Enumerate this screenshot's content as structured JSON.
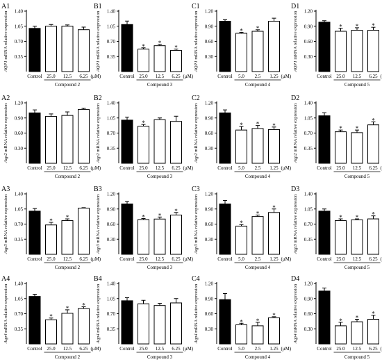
{
  "chart_data": [
    {
      "id": "A1",
      "type": "bar",
      "ylabel_name": "AQP1",
      "ylabel_suffix": " mRNA relative expression",
      "yticks": [
        0.35,
        0.7,
        1.05,
        1.4
      ],
      "ylim": [
        0,
        1.4
      ],
      "categories": [
        "Control",
        "25.0",
        "12.5",
        "6.25"
      ],
      "values": [
        1.0,
        1.05,
        1.05,
        0.97
      ],
      "errors": [
        0.05,
        0.04,
        0.03,
        0.06
      ],
      "significant": [
        false,
        false,
        false,
        false
      ],
      "unit": "(μM)",
      "compound": "Compound 2"
    },
    {
      "id": "B1",
      "type": "bar",
      "ylabel_name": "AQP1",
      "ylabel_suffix": " mRNA relative expression",
      "yticks": [
        0.35,
        0.7,
        1.05,
        1.4
      ],
      "ylim": [
        0,
        1.4
      ],
      "categories": [
        "Control",
        "25.0",
        "12.5",
        "6.25"
      ],
      "values": [
        1.09,
        0.52,
        0.6,
        0.49
      ],
      "errors": [
        0.08,
        0.03,
        0.03,
        0.03
      ],
      "significant": [
        false,
        true,
        true,
        true
      ],
      "unit": "(μM)",
      "compound": "Compound 3"
    },
    {
      "id": "C1",
      "type": "bar",
      "ylabel_name": "AQP1",
      "ylabel_suffix": " mRNA relative expression",
      "yticks": [
        0.3,
        0.6,
        0.9,
        1.2
      ],
      "ylim": [
        0,
        1.2
      ],
      "categories": [
        "Control",
        "5.0",
        "2.5",
        "1.25"
      ],
      "values": [
        1.0,
        0.76,
        0.8,
        1.0
      ],
      "errors": [
        0.03,
        0.02,
        0.03,
        0.06
      ],
      "significant": [
        false,
        true,
        true,
        false
      ],
      "unit": "(μM)",
      "compound": "Compound 4"
    },
    {
      "id": "D1",
      "type": "bar",
      "ylabel_name": "AQP1",
      "ylabel_suffix": " mRNA relative expression",
      "yticks": [
        0.3,
        0.6,
        0.9,
        1.2
      ],
      "ylim": [
        0,
        1.2
      ],
      "categories": [
        "Control",
        "25.0",
        "12.5",
        "6.25"
      ],
      "values": [
        0.98,
        0.8,
        0.82,
        0.82
      ],
      "errors": [
        0.03,
        0.06,
        0.05,
        0.06
      ],
      "significant": [
        false,
        true,
        true,
        true
      ],
      "unit": "(μM)",
      "compound": "Compound 5"
    },
    {
      "id": "A2",
      "type": "bar",
      "ylabel_name": "Aqp2",
      "ylabel_suffix": " mRNA relative expression",
      "yticks": [
        0.3,
        0.6,
        0.9,
        1.2
      ],
      "ylim": [
        0,
        1.2
      ],
      "categories": [
        "Control",
        "25.0",
        "12.5",
        "6.25"
      ],
      "values": [
        1.0,
        0.93,
        0.95,
        1.07
      ],
      "errors": [
        0.06,
        0.05,
        0.07,
        0.02
      ],
      "significant": [
        false,
        false,
        false,
        false
      ],
      "unit": "(μM)",
      "compound": "Compound 2"
    },
    {
      "id": "B2",
      "type": "bar",
      "ylabel_name": "Aqp2",
      "ylabel_suffix": " mRNA relative expression",
      "yticks": [
        0.35,
        0.7,
        1.05,
        1.4
      ],
      "ylim": [
        0,
        1.4
      ],
      "categories": [
        "Control",
        "25.0",
        "12.5",
        "6.25"
      ],
      "values": [
        1.0,
        0.86,
        1.01,
        0.97
      ],
      "errors": [
        0.07,
        0.04,
        0.04,
        0.12
      ],
      "significant": [
        false,
        true,
        false,
        false
      ],
      "unit": "(μM)",
      "compound": "Compound 3"
    },
    {
      "id": "C2",
      "type": "bar",
      "ylabel_name": "Aqp2",
      "ylabel_suffix": " mRNA relative expression",
      "yticks": [
        0.3,
        0.6,
        0.9,
        1.2
      ],
      "ylim": [
        0,
        1.2
      ],
      "categories": [
        "Control",
        "5.0",
        "2.5",
        "1.25"
      ],
      "values": [
        1.0,
        0.66,
        0.69,
        0.67
      ],
      "errors": [
        0.06,
        0.07,
        0.06,
        0.05
      ],
      "significant": [
        false,
        true,
        true,
        true
      ],
      "unit": "(μM)",
      "compound": "Compound 4"
    },
    {
      "id": "D2",
      "type": "bar",
      "ylabel_name": "Aqp2",
      "ylabel_suffix": " mRNA relative expression",
      "yticks": [
        0.35,
        0.7,
        1.05,
        1.4
      ],
      "ylim": [
        0,
        1.4
      ],
      "categories": [
        "Control",
        "25.0",
        "12.5",
        "6.25"
      ],
      "values": [
        1.1,
        0.73,
        0.71,
        0.89
      ],
      "errors": [
        0.07,
        0.04,
        0.06,
        0.07
      ],
      "significant": [
        false,
        true,
        true,
        true
      ],
      "unit": "(μM)",
      "compound": "Compound 5"
    },
    {
      "id": "A3",
      "type": "bar",
      "ylabel_name": "Aqp3",
      "ylabel_suffix": " mRNA relative expression",
      "yticks": [
        0.35,
        0.7,
        1.05,
        1.4
      ],
      "ylim": [
        0,
        1.4
      ],
      "categories": [
        "Control",
        "25.0",
        "12.5",
        "6.25"
      ],
      "values": [
        1.0,
        0.68,
        0.78,
        1.07
      ],
      "errors": [
        0.06,
        0.06,
        0.04,
        0.01
      ],
      "significant": [
        false,
        true,
        true,
        false
      ],
      "unit": "(μM)",
      "compound": "Compound 2"
    },
    {
      "id": "B3",
      "type": "bar",
      "ylabel_name": "Aqp3",
      "ylabel_suffix": " mRNA relative expression",
      "yticks": [
        0.3,
        0.6,
        0.9,
        1.2
      ],
      "ylim": [
        0,
        1.2
      ],
      "categories": [
        "Control",
        "25.0",
        "12.5",
        "6.25"
      ],
      "values": [
        1.0,
        0.69,
        0.7,
        0.78
      ],
      "errors": [
        0.05,
        0.02,
        0.04,
        0.05
      ],
      "significant": [
        false,
        true,
        true,
        true
      ],
      "unit": "(μM)",
      "compound": "Compound 3"
    },
    {
      "id": "C3",
      "type": "bar",
      "ylabel_name": "Aqp3",
      "ylabel_suffix": " mRNA relative expression",
      "yticks": [
        0.3,
        0.6,
        0.9,
        1.2
      ],
      "ylim": [
        0,
        1.2
      ],
      "categories": [
        "Control",
        "5.0",
        "2.5",
        "1.25"
      ],
      "values": [
        1.0,
        0.56,
        0.75,
        0.83
      ],
      "errors": [
        0.07,
        0.03,
        0.03,
        0.07
      ],
      "significant": [
        false,
        true,
        true,
        true
      ],
      "unit": "(μM)",
      "compound": "Compound 4"
    },
    {
      "id": "D3",
      "type": "bar",
      "ylabel_name": "Aqp3",
      "ylabel_suffix": " mRNA relative expression",
      "yticks": [
        0.35,
        0.7,
        1.05,
        1.4
      ],
      "ylim": [
        0,
        1.4
      ],
      "categories": [
        "Control",
        "25.0",
        "12.5",
        "6.25"
      ],
      "values": [
        1.0,
        0.78,
        0.8,
        0.82
      ],
      "errors": [
        0.05,
        0.04,
        0.02,
        0.07
      ],
      "significant": [
        false,
        true,
        true,
        true
      ],
      "unit": "(μM)",
      "compound": "Compound 5"
    },
    {
      "id": "A4",
      "type": "bar",
      "ylabel_name": "Aqp4",
      "ylabel_suffix": " mRNA relative expression",
      "yticks": [
        0.35,
        0.7,
        1.05,
        1.4
      ],
      "ylim": [
        0,
        1.4
      ],
      "categories": [
        "Control",
        "25.0",
        "12.5",
        "6.25"
      ],
      "values": [
        1.1,
        0.56,
        0.71,
        0.82
      ],
      "errors": [
        0.05,
        0.04,
        0.08,
        0.04
      ],
      "significant": [
        false,
        true,
        true,
        true
      ],
      "unit": "(μM)",
      "compound": "Compound 2"
    },
    {
      "id": "B4",
      "type": "bar",
      "ylabel_name": "Aqp4",
      "ylabel_suffix": " mRNA relative expression",
      "yticks": [
        0.35,
        0.7,
        1.05,
        1.4
      ],
      "ylim": [
        0,
        1.4
      ],
      "categories": [
        "Control",
        "25.0",
        "12.5",
        "6.25"
      ],
      "values": [
        1.0,
        0.93,
        0.89,
        0.95
      ],
      "errors": [
        0.07,
        0.08,
        0.05,
        0.1
      ],
      "significant": [
        false,
        false,
        false,
        false
      ],
      "unit": "(μM)",
      "compound": "Compound 3"
    },
    {
      "id": "C4",
      "type": "bar",
      "ylabel_name": "Aqp4",
      "ylabel_suffix": " mRNA relative expression",
      "yticks": [
        0.3,
        0.6,
        0.9,
        1.2
      ],
      "ylim": [
        0,
        1.2
      ],
      "categories": [
        "Control",
        "5.0",
        "2.5",
        "1.25"
      ],
      "values": [
        0.88,
        0.38,
        0.36,
        0.52
      ],
      "errors": [
        0.12,
        0.03,
        0.07,
        0.02
      ],
      "significant": [
        false,
        true,
        true,
        true
      ],
      "unit": "(μM)",
      "compound": "Compound 4"
    },
    {
      "id": "D4",
      "type": "bar",
      "ylabel_name": "Aqp4",
      "ylabel_suffix": " mRNA relative expression",
      "yticks": [
        0.3,
        0.6,
        0.9,
        1.2
      ],
      "ylim": [
        0,
        1.2
      ],
      "categories": [
        "Control",
        "25.0",
        "12.5",
        "6.25"
      ],
      "values": [
        1.05,
        0.36,
        0.44,
        0.49
      ],
      "errors": [
        0.06,
        0.07,
        0.05,
        0.08
      ],
      "significant": [
        false,
        true,
        true,
        true
      ],
      "unit": "(μM)",
      "compound": "Compound 5"
    }
  ],
  "significance_marker": "*",
  "colors": {
    "control_bar": "#000000",
    "treatment_bar": "#ffffff",
    "axis": "#000000"
  }
}
